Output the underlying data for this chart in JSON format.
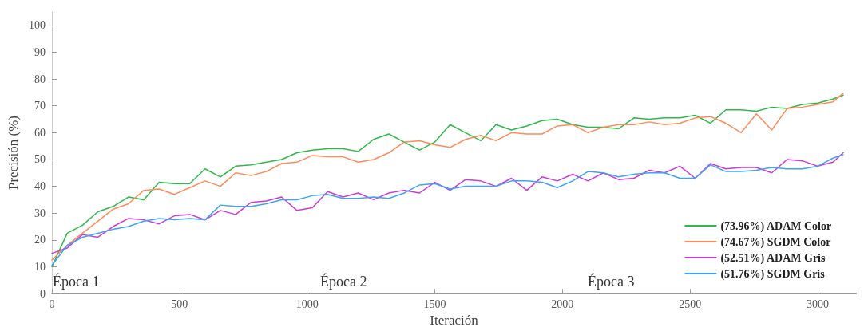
{
  "chart_data": {
    "type": "line",
    "xlabel": "Iteración",
    "ylabel": "Precisión (%)",
    "x": [
      0,
      60,
      120,
      180,
      240,
      300,
      360,
      420,
      480,
      540,
      600,
      660,
      720,
      780,
      840,
      900,
      960,
      1020,
      1080,
      1140,
      1200,
      1260,
      1320,
      1380,
      1440,
      1500,
      1560,
      1620,
      1680,
      1740,
      1800,
      1860,
      1920,
      1980,
      2040,
      2100,
      2160,
      2220,
      2280,
      2340,
      2400,
      2460,
      2520,
      2580,
      2640,
      2700,
      2760,
      2820,
      2880,
      2940,
      3000,
      3060,
      3100
    ],
    "series": [
      {
        "name": "(73.96%) ADAM Color",
        "color": "#2db84a",
        "values": [
          10,
          22.5,
          25.5,
          30.5,
          32.5,
          36,
          35,
          41.5,
          41,
          41,
          46.5,
          43.5,
          47.5,
          48,
          49,
          50,
          52.5,
          53.5,
          54,
          54,
          53,
          57.5,
          59.5,
          56.5,
          53.5,
          56.5,
          63,
          60,
          57,
          63,
          61,
          62.5,
          64.5,
          65,
          63,
          62,
          62,
          61.5,
          65.5,
          65,
          65.5,
          65.5,
          66.5,
          63.5,
          68.5,
          68.5,
          68,
          69.5,
          69,
          70.5,
          71,
          72.5,
          74
        ]
      },
      {
        "name": "(74.67%) SGDM Color",
        "color": "#ff8a5c",
        "values": [
          12.5,
          18,
          22.5,
          27,
          31.5,
          33.5,
          38.5,
          39,
          37,
          39.5,
          42,
          40,
          45,
          44,
          45.5,
          48.5,
          49,
          51.5,
          51,
          51,
          49,
          50,
          52.5,
          56.5,
          57,
          55.5,
          54.5,
          57.5,
          59,
          57,
          60,
          59.5,
          59.5,
          62.5,
          63,
          60,
          62,
          63,
          63,
          64,
          63,
          63.5,
          65.5,
          66,
          63.5,
          60,
          67,
          61,
          69,
          69.5,
          70.5,
          71.5,
          74.7
        ]
      },
      {
        "name": "(52.51%) ADAM Gris",
        "color": "#c83cd4",
        "values": [
          15,
          17,
          22,
          21,
          25,
          28,
          27.5,
          26,
          29,
          29.5,
          27.5,
          31,
          29.5,
          34,
          34.5,
          36,
          31,
          32,
          38,
          36,
          37.5,
          35,
          37.5,
          38.5,
          37.5,
          41.5,
          38.5,
          42.5,
          42,
          40,
          43,
          38.5,
          43.5,
          42,
          44.5,
          42,
          45,
          42.5,
          43,
          46,
          45,
          47.5,
          43,
          48.5,
          46.5,
          47,
          47,
          45,
          50,
          49.5,
          47.5,
          49,
          52.5
        ]
      },
      {
        "name": "(51.76%) SGDM Gris",
        "color": "#3fa3f5",
        "values": [
          10.5,
          18,
          21,
          22.5,
          24,
          25,
          27,
          28,
          27.5,
          28,
          27.5,
          33,
          32.5,
          32.5,
          33.5,
          35,
          35,
          36.5,
          37,
          35.5,
          35.5,
          36,
          35.5,
          37.5,
          40.5,
          41,
          39,
          40,
          40,
          40,
          42,
          42,
          41.5,
          39.5,
          42,
          45.5,
          45,
          43.5,
          44.5,
          45,
          45,
          43,
          43,
          48,
          45.5,
          45.5,
          46,
          47,
          46.5,
          46.5,
          47.5,
          50.5,
          51.8
        ]
      }
    ],
    "xlim": [
      0,
      3150
    ],
    "xticks": [
      0,
      500,
      1000,
      1500,
      2000,
      2500,
      3000
    ],
    "ylim": [
      0,
      105
    ],
    "yticks": [
      0,
      10,
      20,
      30,
      40,
      50,
      60,
      70,
      80,
      90,
      100
    ],
    "annotations": [
      "Época 1",
      "Época 2",
      "Época 3"
    ],
    "grid": false,
    "legend": "bottom right",
    "marker": "none",
    "line_style": "solid"
  }
}
